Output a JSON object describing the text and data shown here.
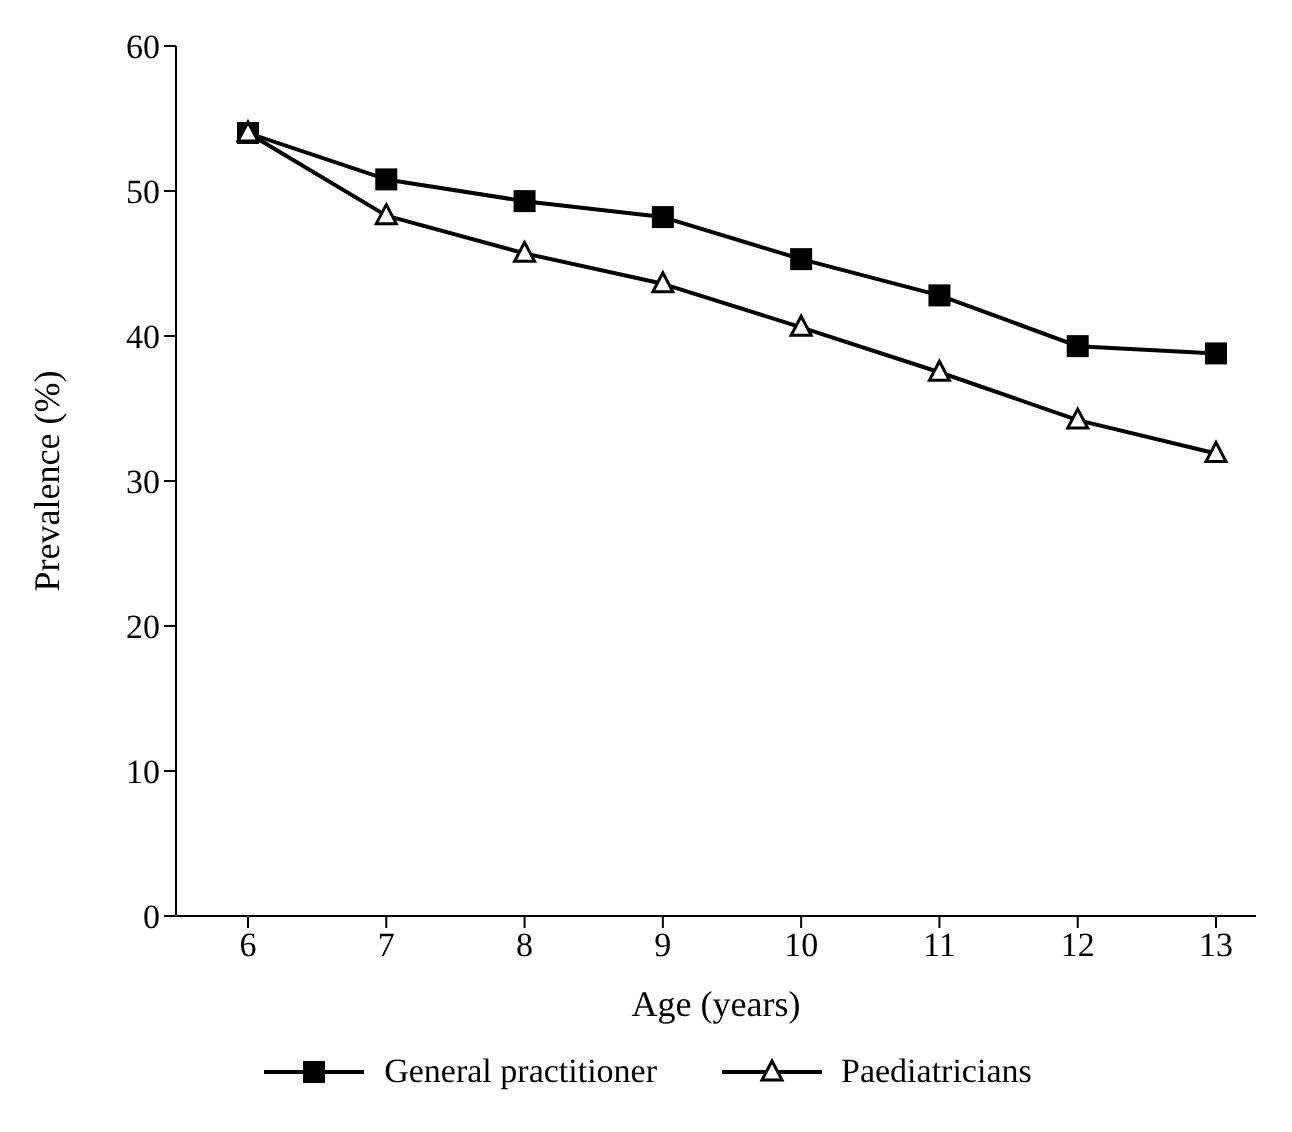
{
  "chart_data": {
    "type": "line",
    "xlabel": "Age (years)",
    "ylabel": "Prevalence (%)",
    "categories": [
      "6",
      "7",
      "8",
      "9",
      "10",
      "11",
      "12",
      "13"
    ],
    "series": [
      {
        "name": "General practitioner",
        "color": "#000000",
        "marker": "square",
        "values": [
          54,
          50.8,
          49.3,
          48.2,
          45.3,
          42.8,
          39.3,
          38.8
        ]
      },
      {
        "name": "Paediatricians",
        "color": "#000000",
        "marker": "triangle",
        "values": [
          54,
          48.3,
          45.7,
          43.6,
          40.6,
          37.5,
          34.2,
          31.9
        ]
      }
    ],
    "ylim": [
      0,
      60
    ],
    "yticks": [
      0,
      10,
      20,
      30,
      40,
      50,
      60
    ],
    "grid": false,
    "legend": "bottom"
  }
}
